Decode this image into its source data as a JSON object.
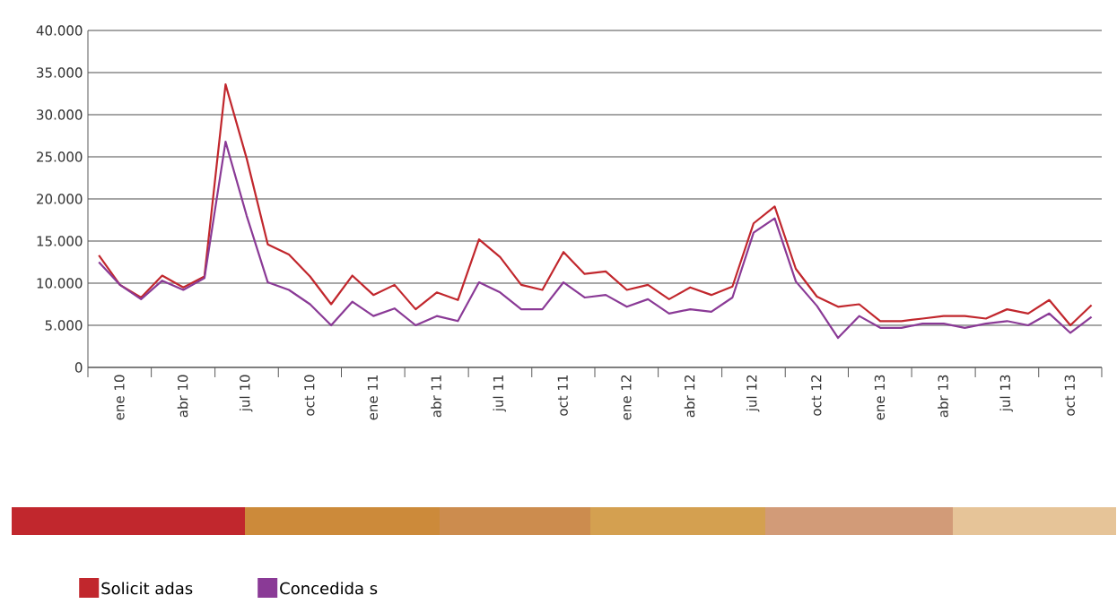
{
  "chart_data": {
    "type": "line",
    "x": [
      "2010-01",
      "2010-02",
      "2010-03",
      "2010-04",
      "2010-05",
      "2010-06",
      "2010-07",
      "2010-08",
      "2010-09",
      "2010-10",
      "2010-11",
      "2010-12",
      "2011-01",
      "2011-02",
      "2011-03",
      "2011-04",
      "2011-05",
      "2011-06",
      "2011-07",
      "2011-08",
      "2011-09",
      "2011-10",
      "2011-11",
      "2011-12",
      "2012-01",
      "2012-02",
      "2012-03",
      "2012-04",
      "2012-05",
      "2012-06",
      "2012-07",
      "2012-08",
      "2012-09",
      "2012-10",
      "2012-11",
      "2012-12",
      "2013-01",
      "2013-02",
      "2013-03",
      "2013-04",
      "2013-05",
      "2013-06",
      "2013-07",
      "2013-08",
      "2013-09",
      "2013-10",
      "2013-11",
      "2013-12"
    ],
    "series": [
      {
        "name": "Solicit adas",
        "color": "#c1272d",
        "values": [
          13300,
          9800,
          8300,
          10900,
          9500,
          10800,
          33600,
          24800,
          14600,
          13400,
          10800,
          7500,
          10900,
          8600,
          9800,
          6900,
          8900,
          8000,
          15200,
          13100,
          9800,
          9200,
          13700,
          11100,
          11400,
          9200,
          9800,
          8100,
          9500,
          8600,
          9600,
          17100,
          19100,
          11700,
          8400,
          7200,
          7500,
          5500,
          5500,
          5800,
          6100,
          6100,
          5800,
          6900,
          6400,
          8000,
          5000,
          7400
        ]
      },
      {
        "name": "Concedida s",
        "color": "#8a3a96",
        "values": [
          12500,
          9800,
          8100,
          10300,
          9200,
          10600,
          26800,
          18000,
          10100,
          9200,
          7500,
          5000,
          7800,
          6100,
          7000,
          5000,
          6100,
          5500,
          10100,
          8900,
          6900,
          6900,
          10100,
          8300,
          8600,
          7200,
          8100,
          6400,
          6900,
          6600,
          8300,
          16000,
          17700,
          10200,
          7300,
          3500,
          6100,
          4700,
          4700,
          5200,
          5200,
          4700,
          5200,
          5500,
          5000,
          6400,
          4100,
          6000
        ]
      }
    ],
    "xlim": [
      "2009-12-16",
      "2013-12-16"
    ],
    "xticks": [
      {
        "value": "2009-12-16",
        "label": null
      },
      {
        "value": "2010-01-31",
        "label": "ene 10"
      },
      {
        "value": "2010-03-16",
        "label": null
      },
      {
        "value": "2010-04-30",
        "label": "abr 10"
      },
      {
        "value": "2010-06-16",
        "label": null
      },
      {
        "value": "2010-07-31",
        "label": "jul 10"
      },
      {
        "value": "2010-09-16",
        "label": null
      },
      {
        "value": "2010-10-31",
        "label": "oct 10"
      },
      {
        "value": "2010-12-16",
        "label": null
      },
      {
        "value": "2011-01-31",
        "label": "ene 11"
      },
      {
        "value": "2011-03-16",
        "label": null
      },
      {
        "value": "2011-04-30",
        "label": "abr 11"
      },
      {
        "value": "2011-06-16",
        "label": null
      },
      {
        "value": "2011-07-31",
        "label": "jul 11"
      },
      {
        "value": "2011-09-16",
        "label": null
      },
      {
        "value": "2011-10-31",
        "label": "oct 11"
      },
      {
        "value": "2011-12-16",
        "label": null
      },
      {
        "value": "2012-01-31",
        "label": "ene 12"
      },
      {
        "value": "2012-03-16",
        "label": null
      },
      {
        "value": "2012-04-30",
        "label": "abr 12"
      },
      {
        "value": "2012-06-16",
        "label": null
      },
      {
        "value": "2012-07-31",
        "label": "jul 12"
      },
      {
        "value": "2012-09-16",
        "label": null
      },
      {
        "value": "2012-10-31",
        "label": "oct 12"
      },
      {
        "value": "2012-12-16",
        "label": null
      },
      {
        "value": "2013-01-31",
        "label": "ene 13"
      },
      {
        "value": "2013-03-16",
        "label": null
      },
      {
        "value": "2013-04-30",
        "label": "abr 13"
      },
      {
        "value": "2013-06-16",
        "label": null
      },
      {
        "value": "2013-07-31",
        "label": "jul 13"
      },
      {
        "value": "2013-09-16",
        "label": null
      },
      {
        "value": "2013-10-31",
        "label": "oct 13"
      },
      {
        "value": "2013-12-16",
        "label": null
      }
    ],
    "ylim": [
      0,
      40000
    ],
    "yticks": [
      0,
      {
        "value": 5000,
        "label": "5.000"
      },
      {
        "value": 10000,
        "label": "10.000"
      },
      {
        "value": 15000,
        "label": "15.000"
      },
      {
        "value": 20000,
        "label": "20.000"
      },
      {
        "value": 25000,
        "label": "25.000"
      },
      {
        "value": 30000,
        "label": "30.000"
      },
      {
        "value": 35000,
        "label": "35.000"
      },
      {
        "value": 40000,
        "label": "40.000"
      }
    ],
    "grid": "y",
    "legend": "bottom left",
    "marker": "none",
    "line_style": "solid"
  }
}
